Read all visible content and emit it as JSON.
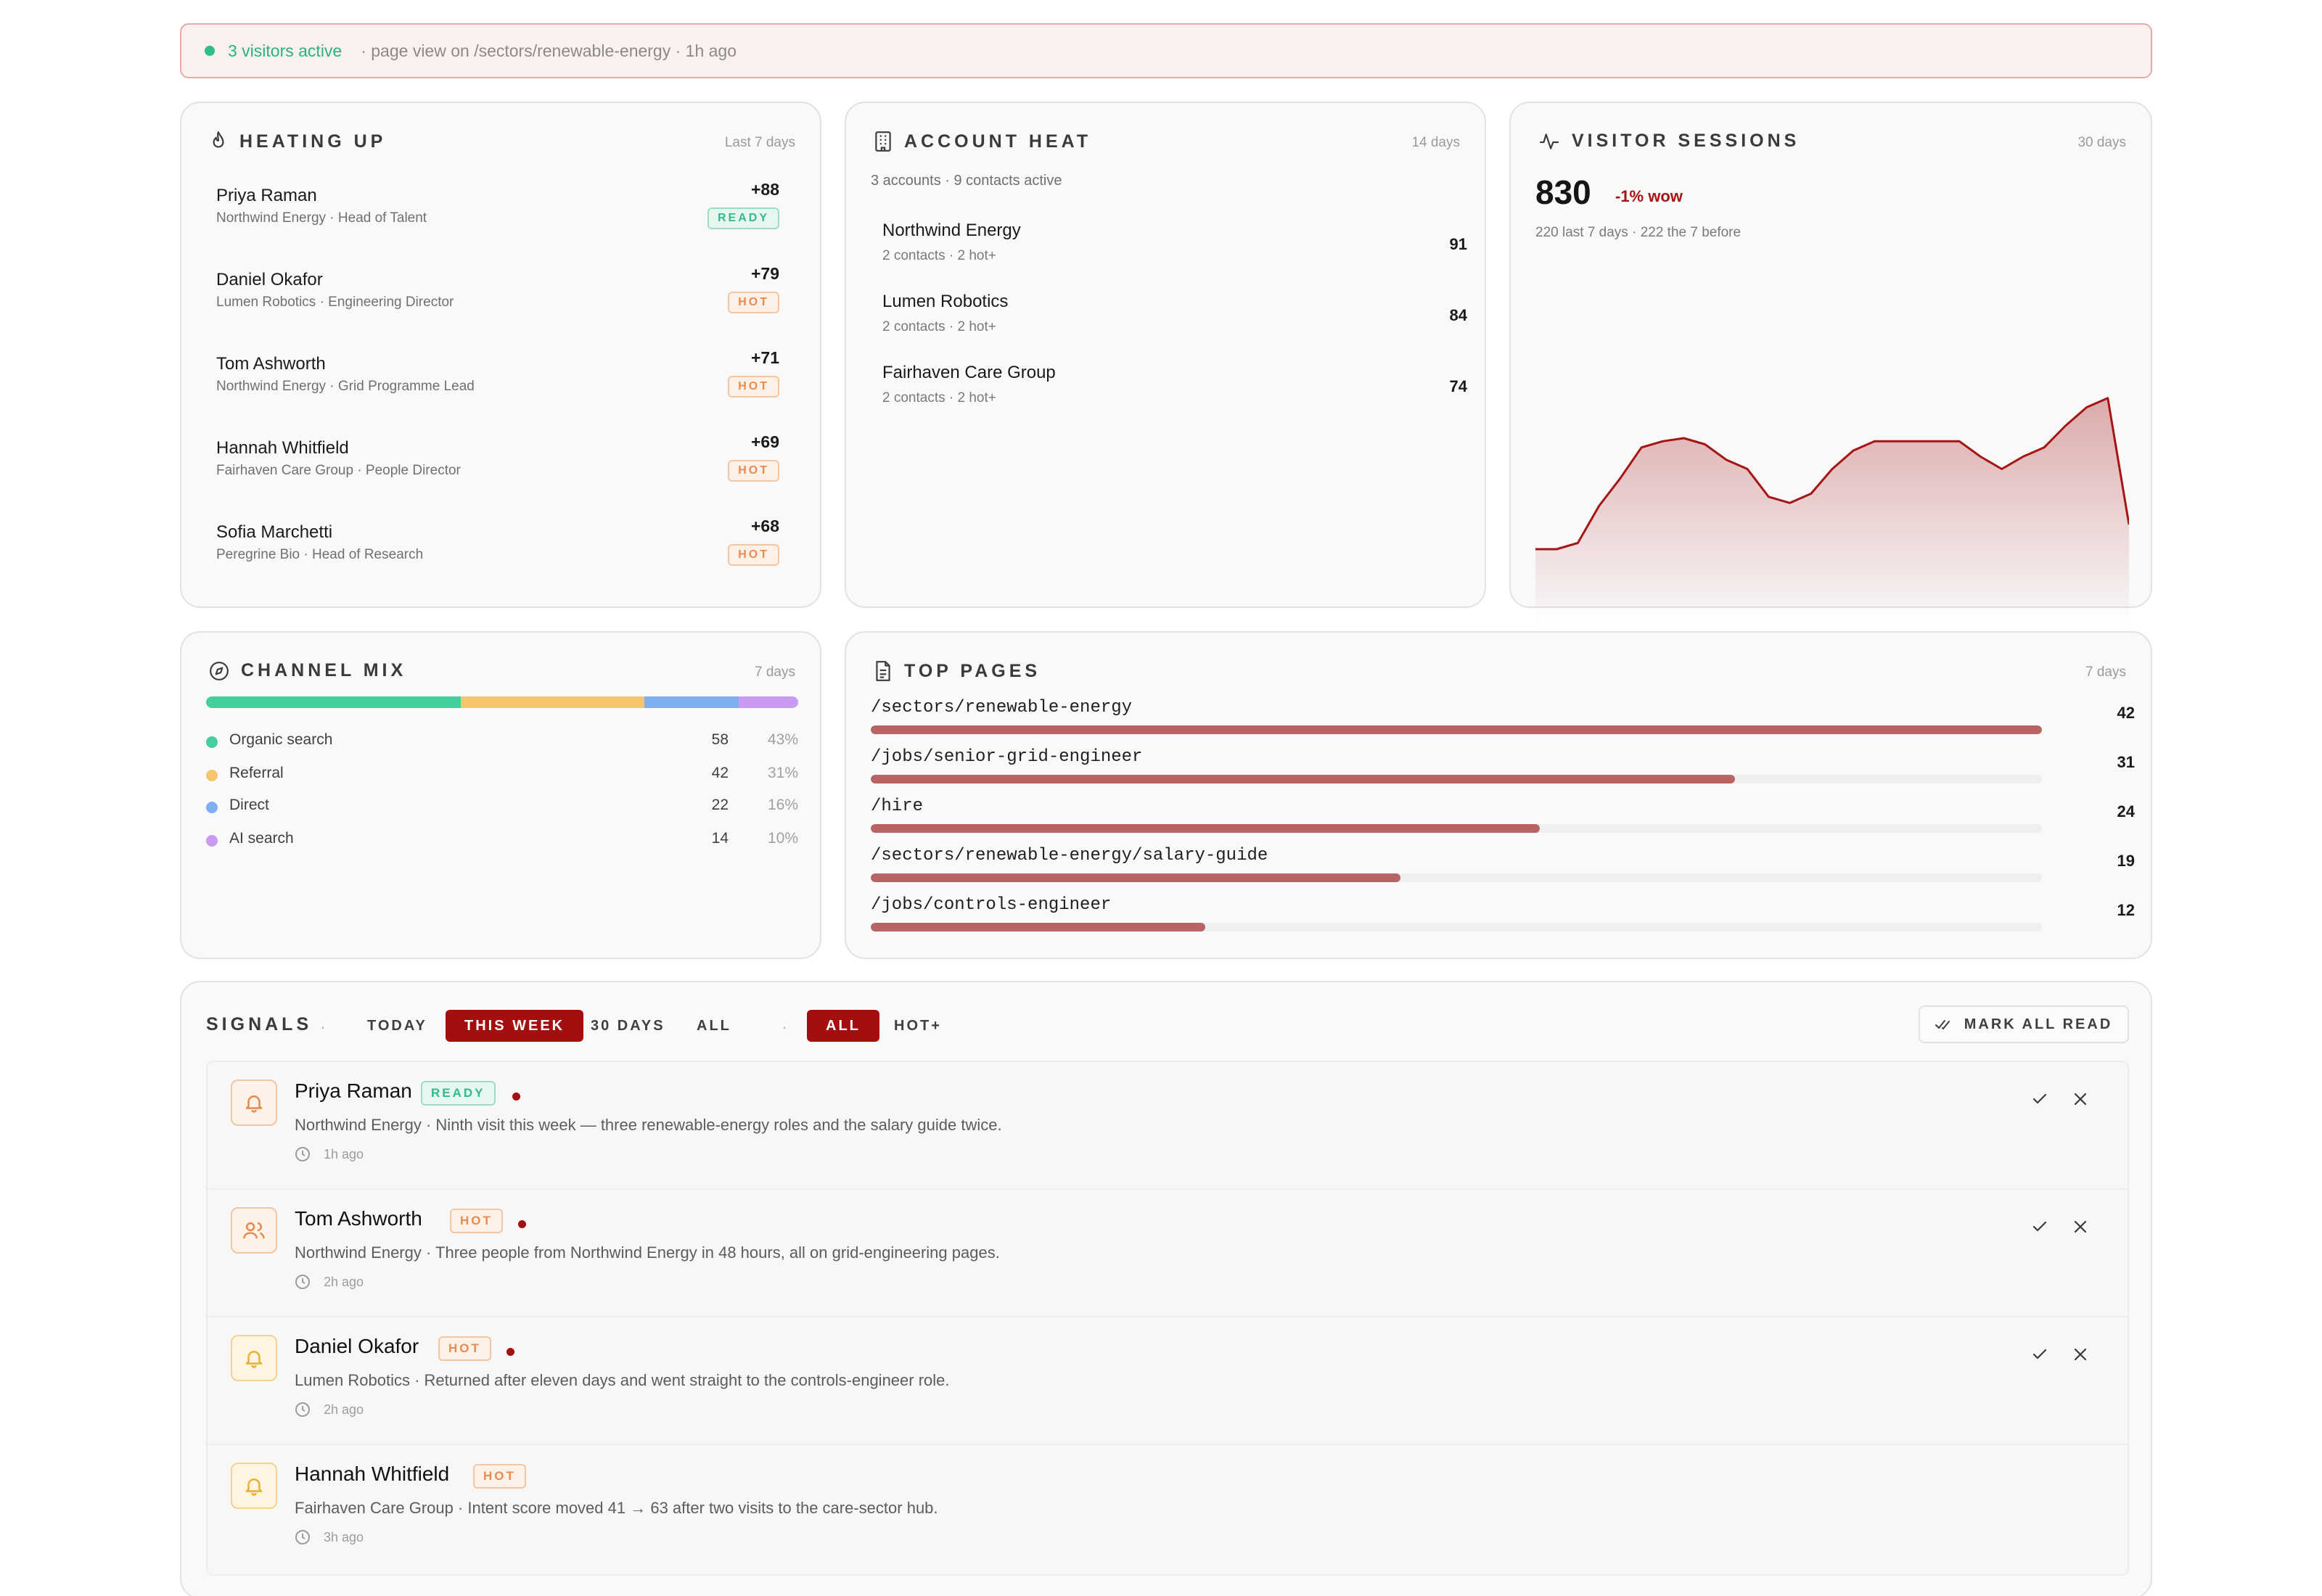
{
  "banner": {
    "active": "3 visitors active",
    "event": "· page view on /sectors/renewable-energy · 1h ago"
  },
  "heating_up": {
    "title": "HEATING UP",
    "period": "Last 7 days",
    "icon": "flame-icon",
    "rows": [
      {
        "name": "Priya Raman",
        "meta": "Northwind Energy · Head of Talent",
        "score": "+88",
        "badge": "READY"
      },
      {
        "name": "Daniel Okafor",
        "meta": "Lumen Robotics · Engineering Director",
        "score": "+79",
        "badge": "HOT"
      },
      {
        "name": "Tom Ashworth",
        "meta": "Northwind Energy · Grid Programme Lead",
        "score": "+71",
        "badge": "HOT"
      },
      {
        "name": "Hannah Whitfield",
        "meta": "Fairhaven Care Group · People Director",
        "score": "+69",
        "badge": "HOT"
      },
      {
        "name": "Sofia Marchetti",
        "meta": "Peregrine Bio · Head of Research",
        "score": "+68",
        "badge": "HOT"
      }
    ]
  },
  "account_heat": {
    "title": "ACCOUNT HEAT",
    "period": "14 days",
    "icon": "building-icon",
    "summary": "3 accounts · 9 contacts active",
    "rows": [
      {
        "name": "Northwind Energy",
        "meta": "2 contacts · 2 hot+",
        "score": "91"
      },
      {
        "name": "Lumen Robotics",
        "meta": "2 contacts · 2 hot+",
        "score": "84"
      },
      {
        "name": "Fairhaven Care Group",
        "meta": "2 contacts · 2 hot+",
        "score": "74"
      }
    ]
  },
  "visitor_sessions": {
    "title": "VISITOR SESSIONS",
    "period": "30 days",
    "icon": "activity-icon",
    "total": "830",
    "delta": "-1% wow",
    "detail": "220 last 7 days · 222 the 7 before",
    "color": "#a61515"
  },
  "chart_data": {
    "type": "area",
    "title": "",
    "xlabel": "",
    "ylabel": "",
    "series": [
      {
        "values": [
          20,
          20,
          22,
          34,
          43,
          53,
          55,
          56,
          54,
          49,
          46,
          37,
          35,
          38,
          46,
          52,
          55,
          55,
          55,
          55,
          55,
          50,
          46,
          50,
          53,
          60,
          66,
          69,
          28
        ]
      }
    ],
    "grid": false
  },
  "channel_mix": {
    "title": "CHANNEL MIX",
    "period": "7 days",
    "icon": "compass-icon",
    "channels": [
      {
        "label": "Organic search",
        "count": "58",
        "pct": "43%",
        "share": 43,
        "color": "#45cf9c"
      },
      {
        "label": "Referral",
        "count": "42",
        "pct": "31%",
        "share": 31,
        "color": "#f6c76a"
      },
      {
        "label": "Direct",
        "count": "22",
        "pct": "16%",
        "share": 16,
        "color": "#7faef0"
      },
      {
        "label": "AI search",
        "count": "14",
        "pct": "10%",
        "share": 10,
        "color": "#c99af2"
      }
    ]
  },
  "top_pages": {
    "title": "TOP PAGES",
    "period": "7 days",
    "icon": "file-icon",
    "pages": [
      {
        "path": "/sectors/renewable-energy",
        "count": "42",
        "views": 42
      },
      {
        "path": "/jobs/senior-grid-engineer",
        "count": "31",
        "views": 31
      },
      {
        "path": "/hire",
        "count": "24",
        "views": 24
      },
      {
        "path": "/sectors/renewable-energy/salary-guide",
        "count": "19",
        "views": 19
      },
      {
        "path": "/jobs/controls-engineer",
        "count": "12",
        "views": 12
      }
    ]
  },
  "signals": {
    "title": "SIGNALS",
    "period_tabs": [
      "TODAY",
      "THIS WEEK",
      "30 DAYS",
      "ALL"
    ],
    "period_selected": "THIS WEEK",
    "level_tabs": [
      "ALL",
      "HOT+"
    ],
    "level_selected": "ALL",
    "separator": ".",
    "mark_all_read": "MARK ALL READ",
    "items": [
      {
        "name": "Priya Raman",
        "badge": "READY",
        "unread": true,
        "icon": "bell-icon",
        "text": "Northwind Energy · Ninth visit this week — three renewable-energy roles and the salary guide twice.",
        "time": "1h ago"
      },
      {
        "name": "Tom Ashworth",
        "badge": "HOT",
        "unread": true,
        "icon": "users-icon",
        "text": "Northwind Energy · Three people from Northwind Energy in 48 hours, all on grid-engineering pages.",
        "time": "2h ago"
      },
      {
        "name": "Daniel Okafor",
        "badge": "HOT",
        "unread": true,
        "icon": "bell-icon",
        "text": "Lumen Robotics · Returned after eleven days and went straight to the controls-engineer role.",
        "time": "2h ago"
      },
      {
        "name": "Hannah Whitfield",
        "badge": "HOT",
        "unread": false,
        "icon": "bell-icon",
        "text": "Fairhaven Care Group · Intent score moved 41 → 63 after two visits to the care-sector hub.",
        "time": "3h ago"
      }
    ]
  }
}
